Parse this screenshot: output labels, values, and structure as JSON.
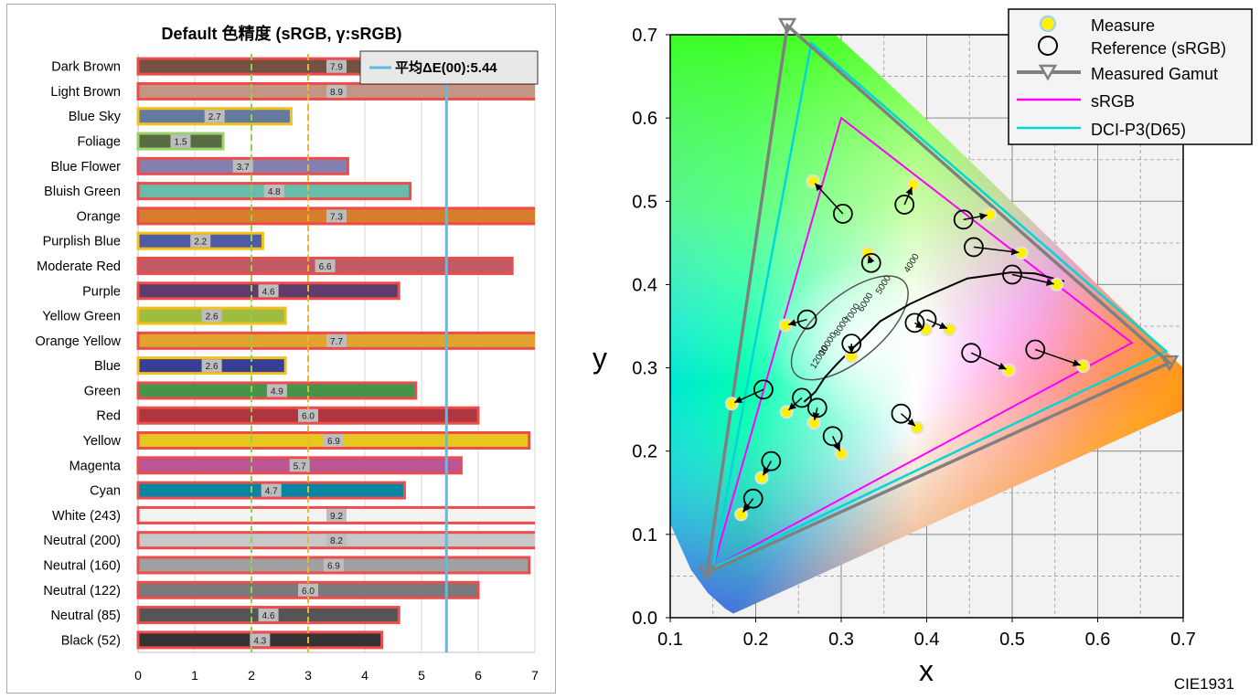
{
  "colors": {
    "pass_outline": "#f2c11a",
    "good_outline": "#9bd169",
    "fail_outline": "#ee4b4b",
    "avg_line": "#5bbde4",
    "line_2": "#92d050",
    "line_3": "#f0b52a",
    "srgb": "#ff00ff",
    "dcip3": "#00d7d7",
    "measured_gamut": "#808080"
  },
  "chart_data": [
    {
      "type": "bar",
      "orientation": "horizontal",
      "title": "Default 色精度 (sRGB, γ:sRGB)",
      "xlim": [
        0,
        7
      ],
      "xticks": [
        "0",
        "1",
        "2",
        "3",
        "4",
        "5",
        "6",
        "7"
      ],
      "reference_lines": [
        2,
        3
      ],
      "average": {
        "label": "平均ΔE(00):5.44",
        "value": 5.44
      },
      "categories": [
        "Dark Brown",
        "Light Brown",
        "Blue Sky",
        "Foliage",
        "Blue Flower",
        "Bluish Green",
        "Orange",
        "Purplish Blue",
        "Moderate Red",
        "Purple",
        "Yellow Green",
        "Orange Yellow",
        "Blue",
        "Green",
        "Red",
        "Yellow",
        "Magenta",
        "Cyan",
        "White (243)",
        "Neutral (200)",
        "Neutral (160)",
        "Neutral (122)",
        "Neutral (85)",
        "Black (52)"
      ],
      "values": [
        7.9,
        8.9,
        2.7,
        1.5,
        3.7,
        4.8,
        7.3,
        2.2,
        6.6,
        4.6,
        2.6,
        7.7,
        2.6,
        4.9,
        6.0,
        6.9,
        5.7,
        4.7,
        9.2,
        8.2,
        6.9,
        6.0,
        4.6,
        4.3
      ],
      "value_labels": [
        "7.9",
        "8.9",
        "2.7",
        "1.5",
        "3.7",
        "4.8",
        "7.3",
        "2.2",
        "6.6",
        "4.6",
        "2.6",
        "7.7",
        "2.6",
        "4.9",
        "6.0",
        "6.9",
        "5.7",
        "4.7",
        "9.2",
        "8.2",
        "6.9",
        "6.0",
        "4.6",
        "4.3"
      ],
      "bar_colors": [
        "#735244",
        "#c29682",
        "#627a9d",
        "#576c43",
        "#8580b1",
        "#67bdaa",
        "#d67e2c",
        "#505ba6",
        "#c15a63",
        "#5e3c6c",
        "#9dbc40",
        "#e0a32e",
        "#383d96",
        "#469449",
        "#af363c",
        "#e7c71f",
        "#bb5695",
        "#0885a1",
        "#f3f3f2",
        "#c8c8c8",
        "#a0a0a0",
        "#7a7a7a",
        "#555555",
        "#343434"
      ]
    },
    {
      "type": "scatter",
      "title": "",
      "caption": "CIE1931",
      "xlabel": "x",
      "ylabel": "y",
      "xlim": [
        0.1,
        0.7
      ],
      "ylim": [
        0.0,
        0.7
      ],
      "xticks": [
        "0.1",
        "0.2",
        "0.3",
        "0.4",
        "0.5",
        "0.6",
        "0.7"
      ],
      "yticks": [
        "0.0",
        "0.1",
        "0.2",
        "0.3",
        "0.4",
        "0.5",
        "0.6",
        "0.7"
      ],
      "legend": {
        "position": "top-right",
        "entries": [
          "Measure",
          "Reference (sRGB)",
          "Measured Gamut",
          "sRGB",
          "DCI-P3(D65)"
        ]
      },
      "cct_labels": [
        "4000",
        "5000",
        "6000",
        "7000",
        "8000",
        "10000",
        "12000"
      ],
      "srgb_triangle": [
        [
          0.64,
          0.33
        ],
        [
          0.3,
          0.6
        ],
        [
          0.15,
          0.06
        ]
      ],
      "dcip3_triangle": [
        [
          0.68,
          0.32
        ],
        [
          0.265,
          0.69
        ],
        [
          0.15,
          0.06
        ]
      ],
      "measured_gamut": [
        [
          0.684,
          0.306
        ],
        [
          0.237,
          0.711
        ],
        [
          0.143,
          0.054
        ]
      ],
      "pairs": [
        {
          "ref": [
            0.302,
            0.485
          ],
          "meas": [
            0.267,
            0.524
          ]
        },
        {
          "ref": [
            0.374,
            0.496
          ],
          "meas": [
            0.384,
            0.52
          ]
        },
        {
          "ref": [
            0.443,
            0.478
          ],
          "meas": [
            0.474,
            0.484
          ]
        },
        {
          "ref": [
            0.455,
            0.445
          ],
          "meas": [
            0.511,
            0.438
          ]
        },
        {
          "ref": [
            0.5,
            0.412
          ],
          "meas": [
            0.552,
            0.4
          ]
        },
        {
          "ref": [
            0.335,
            0.426
          ],
          "meas": [
            0.331,
            0.438
          ]
        },
        {
          "ref": [
            0.26,
            0.358
          ],
          "meas": [
            0.235,
            0.351
          ]
        },
        {
          "ref": [
            0.4,
            0.358
          ],
          "meas": [
            0.427,
            0.346
          ]
        },
        {
          "ref": [
            0.386,
            0.354
          ],
          "meas": [
            0.399,
            0.346
          ]
        },
        {
          "ref": [
            0.312,
            0.329
          ],
          "meas": [
            0.312,
            0.314
          ]
        },
        {
          "ref": [
            0.452,
            0.318
          ],
          "meas": [
            0.496,
            0.297
          ]
        },
        {
          "ref": [
            0.527,
            0.322
          ],
          "meas": [
            0.583,
            0.302
          ]
        },
        {
          "ref": [
            0.209,
            0.274
          ],
          "meas": [
            0.172,
            0.257
          ]
        },
        {
          "ref": [
            0.254,
            0.264
          ],
          "meas": [
            0.236,
            0.247
          ]
        },
        {
          "ref": [
            0.272,
            0.252
          ],
          "meas": [
            0.268,
            0.234
          ]
        },
        {
          "ref": [
            0.37,
            0.245
          ],
          "meas": [
            0.389,
            0.228
          ]
        },
        {
          "ref": [
            0.29,
            0.218
          ],
          "meas": [
            0.3,
            0.197
          ]
        },
        {
          "ref": [
            0.218,
            0.188
          ],
          "meas": [
            0.207,
            0.168
          ]
        },
        {
          "ref": [
            0.197,
            0.143
          ],
          "meas": [
            0.183,
            0.124
          ]
        }
      ]
    }
  ]
}
